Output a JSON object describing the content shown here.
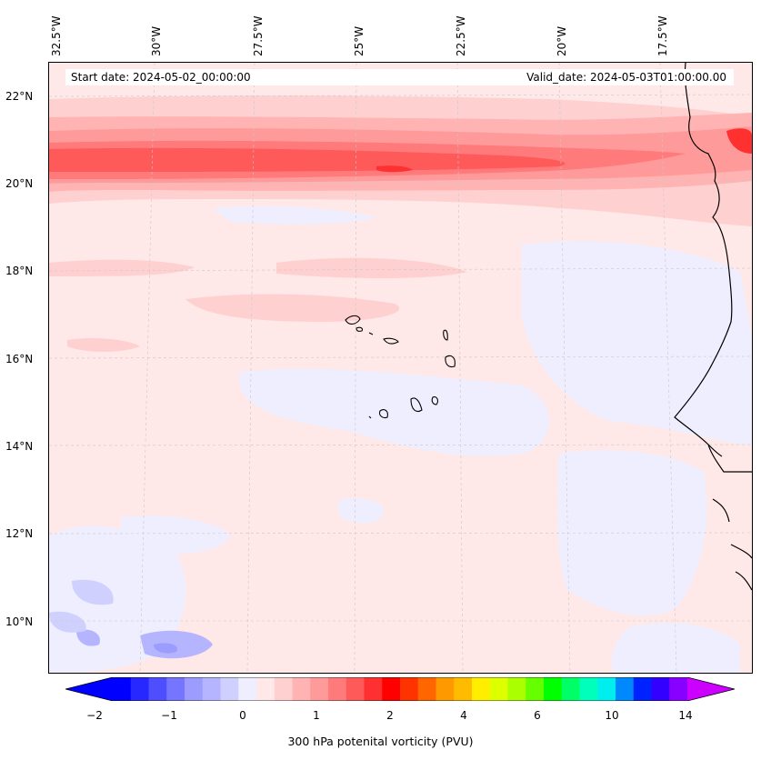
{
  "header": {
    "start_date": "Start date: 2024-05-02_00:00:00",
    "valid_date": "Valid_date: 2024-05-03T01:00:00.00"
  },
  "longitude_labels": [
    "32.5°W",
    "30°W",
    "27.5°W",
    "25°W",
    "22.5°W",
    "20°W",
    "17.5°W"
  ],
  "latitude_labels": [
    "22°N",
    "20°N",
    "18°N",
    "16°N",
    "14°N",
    "12°N",
    "10°N"
  ],
  "colorbar": {
    "ticks": [
      "−2",
      "−1",
      "0",
      "1",
      "2",
      "4",
      "6",
      "10",
      "14"
    ],
    "label": "300 hPa potenital vorticity (PVU)",
    "colors": [
      "#0000ff",
      "#2727ff",
      "#4e4eff",
      "#7575ff",
      "#9c9cff",
      "#b5b5ff",
      "#d0d0ff",
      "#eeeeff",
      "#ffe8e8",
      "#ffd0d0",
      "#ffb3b3",
      "#ff9a9a",
      "#ff7a7a",
      "#ff5a5a",
      "#ff3030",
      "#ff0000",
      "#ff3300",
      "#ff6600",
      "#ff9900",
      "#ffbb00",
      "#ffee00",
      "#ddff00",
      "#aaff00",
      "#66ff00",
      "#00ff00",
      "#00ff66",
      "#00ffbb",
      "#00eeee",
      "#0088ff",
      "#0022ff",
      "#3300ff",
      "#8800ff"
    ],
    "extend_low_color": "#0000ff",
    "extend_high_color": "#cc00ff"
  },
  "map_colors": {
    "background": "#ffe8e8",
    "light_blue": "#eeeeff",
    "blue": "#b5b5ff",
    "pink1": "#ffd0d0",
    "pink2": "#ffb3b3",
    "red1": "#ff7a7a",
    "red2": "#ff5a5a",
    "red3": "#ff3030"
  }
}
